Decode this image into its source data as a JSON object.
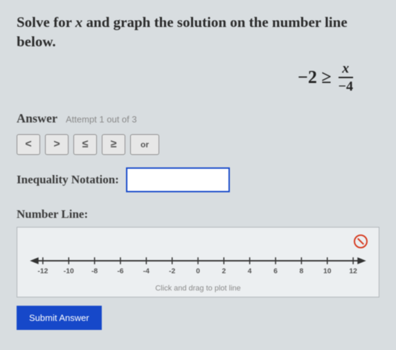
{
  "prompt": {
    "pre": "Solve for ",
    "var": "x",
    "post": " and graph the solution on the number line below."
  },
  "equation": {
    "lhs": "−2 ≥",
    "num": "x",
    "den": "−4"
  },
  "answer": {
    "label": "Answer",
    "attempt": "Attempt 1 out of 3"
  },
  "ops": {
    "lt": "<",
    "gt": ">",
    "le": "≤",
    "ge": "≥",
    "or": "or"
  },
  "ineq": {
    "label": "Inequality Notation:",
    "value": ""
  },
  "nl": {
    "label": "Number Line:",
    "hint": "Click and drag to plot line",
    "ticks": [
      "-12",
      "-10",
      "-8",
      "-6",
      "-4",
      "-2",
      "0",
      "2",
      "4",
      "6",
      "8",
      "10",
      "12"
    ],
    "axis_color": "#333333",
    "tick_fontsize": 10
  },
  "submit": {
    "label": "Submit Answer"
  },
  "colors": {
    "accent": "#1648c9",
    "warn": "#d63a1f"
  }
}
